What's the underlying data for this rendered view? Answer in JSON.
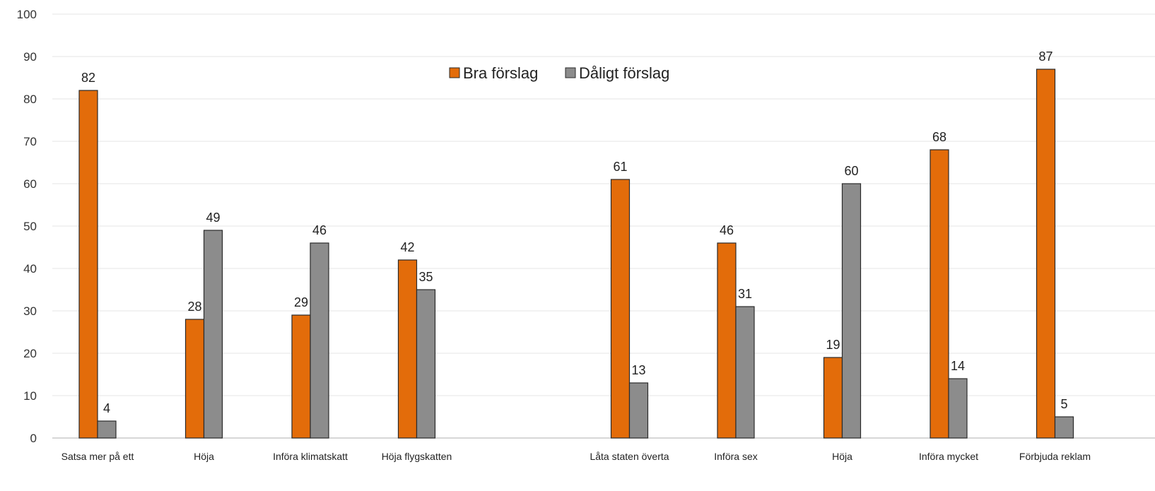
{
  "chart_data": {
    "type": "bar",
    "title": "",
    "xlabel": "",
    "ylabel": "",
    "ylim": [
      0,
      100
    ],
    "y_ticks": [
      0,
      10,
      20,
      30,
      40,
      50,
      60,
      70,
      80,
      90,
      100
    ],
    "grid": true,
    "legend_position": "top-center",
    "categories": [
      "Satsa mer på ett",
      "Höja",
      "Införa klimatskatt",
      "Höja flygskatten",
      "",
      "Låta staten överta",
      "Införa sex",
      "Höja",
      "Införa mycket",
      "Förbjuda reklam"
    ],
    "series": [
      {
        "name": "Bra förslag",
        "color": "#e36c0a",
        "values": [
          82,
          28,
          29,
          42,
          null,
          61,
          46,
          19,
          68,
          87
        ]
      },
      {
        "name": "Dåligt förslag",
        "color": "#8c8c8c",
        "values": [
          4,
          49,
          46,
          35,
          null,
          13,
          31,
          60,
          14,
          5
        ]
      }
    ]
  }
}
